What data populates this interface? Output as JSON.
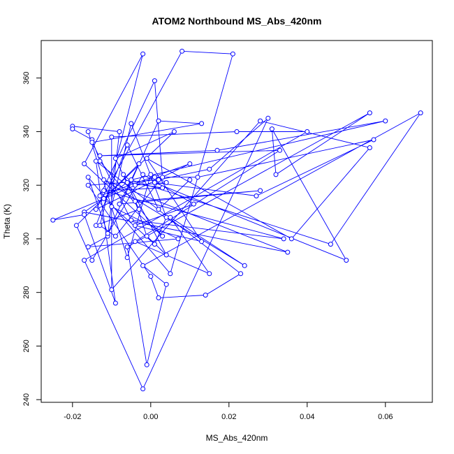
{
  "chart_data": {
    "type": "line",
    "title": "ATOM2 Northbound MS_Abs_420nm",
    "xlabel": "MS_Abs_420nm",
    "ylabel": "Theta (K)",
    "xlim": [
      -0.028,
      0.072
    ],
    "ylim": [
      239,
      374
    ],
    "x_ticks": [
      -0.02,
      0.0,
      0.02,
      0.04,
      0.06
    ],
    "x_tick_labels": [
      "-0.02",
      "0.00",
      "0.02",
      "0.04",
      "0.06"
    ],
    "y_ticks": [
      240,
      260,
      280,
      300,
      320,
      340,
      360
    ],
    "y_tick_labels": [
      "240",
      "260",
      "280",
      "300",
      "320",
      "340",
      "360"
    ],
    "marker": "open-circle",
    "grid": false,
    "series": [
      {
        "color": "#0000ff",
        "points": [
          [
            0.01,
            322
          ],
          [
            0.002,
            311
          ],
          [
            -0.006,
            335
          ],
          [
            -0.014,
            305
          ],
          [
            -0.003,
            311
          ],
          [
            -0.009,
            330
          ],
          [
            0.006,
            340
          ],
          [
            -0.012,
            315
          ],
          [
            0.001,
            298
          ],
          [
            0.004,
            308
          ],
          [
            -0.005,
            343
          ],
          [
            -0.01,
            312
          ],
          [
            0.007,
            300
          ],
          [
            -0.016,
            297
          ],
          [
            -0.011,
            301
          ],
          [
            -0.008,
            340
          ],
          [
            -0.02,
            342
          ],
          [
            -0.02,
            341
          ],
          [
            -0.015,
            337
          ],
          [
            -0.013,
            329
          ],
          [
            0.003,
            301
          ],
          [
            -0.017,
            328
          ],
          [
            -0.002,
            369
          ],
          [
            -0.013,
            305
          ],
          [
            -0.009,
            301
          ],
          [
            0.003,
            323
          ],
          [
            0.001,
            359
          ],
          [
            -0.013,
            316
          ],
          [
            0.01,
            328
          ],
          [
            -0.014,
            311
          ],
          [
            0.008,
            370
          ],
          [
            0.021,
            369
          ],
          [
            0.005,
            287
          ],
          [
            -0.016,
            323
          ],
          [
            -0.011,
            302
          ],
          [
            0.002,
            344
          ],
          [
            0.013,
            343
          ],
          [
            -0.015,
            336
          ],
          [
            -0.005,
            307
          ],
          [
            0.034,
            300
          ],
          [
            -0.012,
            318
          ],
          [
            0.003,
            319
          ],
          [
            -0.006,
            321
          ],
          [
            -0.017,
            310
          ],
          [
            0.035,
            295
          ],
          [
            -0.012,
            322
          ],
          [
            0.024,
            290
          ],
          [
            0.005,
            308
          ],
          [
            0.015,
            287
          ],
          [
            -0.004,
            299
          ],
          [
            0.033,
            333
          ],
          [
            -0.013,
            331
          ],
          [
            0.017,
            333
          ],
          [
            0.06,
            344
          ],
          [
            -0.005,
            322
          ],
          [
            0.046,
            298
          ],
          [
            0.069,
            347
          ],
          [
            -0.002,
            290
          ],
          [
            0.004,
            283
          ],
          [
            -0.001,
            253
          ],
          [
            -0.006,
            297
          ],
          [
            0.056,
            347
          ],
          [
            0.032,
            324
          ],
          [
            0.031,
            341
          ],
          [
            0.05,
            292
          ],
          [
            0.001,
            321
          ],
          [
            0.027,
            316
          ],
          [
            0.057,
            337
          ],
          [
            0.012,
            323
          ],
          [
            0.001,
            323
          ],
          [
            -0.025,
            307
          ],
          [
            -0.017,
            309
          ],
          [
            -0.009,
            276
          ],
          [
            -0.014,
            329
          ],
          [
            0.023,
            287
          ],
          [
            0.014,
            279
          ],
          [
            0.002,
            278
          ],
          [
            0.0,
            286
          ],
          [
            -0.016,
            320
          ],
          [
            0.002,
            322
          ],
          [
            0.015,
            326
          ],
          [
            0.03,
            345
          ],
          [
            -0.002,
            244
          ],
          [
            -0.017,
            292
          ],
          [
            0.04,
            340
          ],
          [
            0.022,
            340
          ],
          [
            -0.01,
            338
          ],
          [
            -0.01,
            281
          ],
          [
            0.028,
            344
          ],
          [
            0.056,
            334
          ],
          [
            0.036,
            300
          ],
          [
            -0.001,
            330
          ],
          [
            0.013,
            299
          ],
          [
            -0.004,
            305
          ],
          [
            0.011,
            313
          ],
          [
            -0.002,
            324
          ],
          [
            -0.015,
            292
          ],
          [
            -0.019,
            305
          ],
          [
            -0.003,
            328
          ],
          [
            -0.008,
            313
          ],
          [
            0.028,
            318
          ],
          [
            -0.004,
            314
          ],
          [
            -0.001,
            301
          ],
          [
            0.004,
            294
          ],
          [
            -0.007,
            324
          ],
          [
            -0.004,
            320
          ],
          [
            0.004,
            321
          ],
          [
            0.0,
            324
          ],
          [
            -0.006,
            293
          ],
          [
            -0.016,
            340
          ]
        ]
      }
    ]
  }
}
